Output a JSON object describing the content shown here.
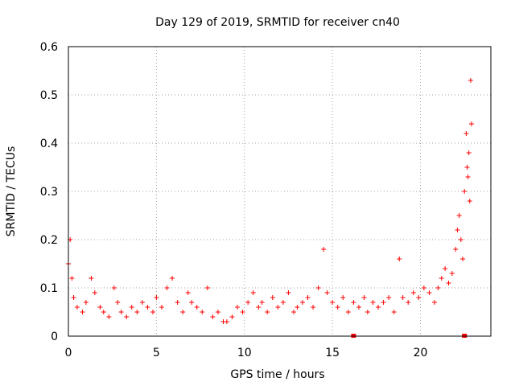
{
  "chart_data": {
    "type": "scatter",
    "title": "Day 129 of 2019, SRMTID for receiver cn40",
    "xlabel": "GPS time / hours",
    "ylabel": "SRMTID / TECUs",
    "xlim": [
      0,
      24
    ],
    "ylim": [
      0,
      0.6
    ],
    "xticks": [
      0,
      5,
      10,
      15,
      20
    ],
    "yticks": [
      0,
      0.1,
      0.2,
      0.3,
      0.4,
      0.5,
      0.6
    ],
    "xtick_labels": [
      "0",
      "5",
      "10",
      "15",
      "20"
    ],
    "ytick_labels": [
      "0",
      "0.1",
      "0.2",
      "0.3",
      "0.4",
      "0.5",
      "0.6"
    ],
    "grid": true,
    "marker": "+",
    "color": "#ff0000",
    "series": [
      {
        "name": "SRMTID",
        "x": [
          0.0,
          0.1,
          0.2,
          0.3,
          0.5,
          0.8,
          1.0,
          1.3,
          1.5,
          1.8,
          2.0,
          2.3,
          2.6,
          2.8,
          3.0,
          3.3,
          3.6,
          3.9,
          4.2,
          4.5,
          4.8,
          5.0,
          5.3,
          5.6,
          5.9,
          6.2,
          6.5,
          6.8,
          7.0,
          7.3,
          7.6,
          7.9,
          8.2,
          8.5,
          8.8,
          9.0,
          9.3,
          9.6,
          9.9,
          10.2,
          10.5,
          10.8,
          11.0,
          11.3,
          11.6,
          11.9,
          12.2,
          12.5,
          12.8,
          13.0,
          13.3,
          13.6,
          13.9,
          14.2,
          14.5,
          14.7,
          15.0,
          15.3,
          15.6,
          15.9,
          16.2,
          16.5,
          16.8,
          17.0,
          17.3,
          17.6,
          17.9,
          18.2,
          18.5,
          18.8,
          19.0,
          19.3,
          19.6,
          19.9,
          20.2,
          20.5,
          20.8,
          21.0,
          21.2,
          21.4,
          21.6,
          21.8,
          22.0,
          22.1,
          22.2,
          22.3,
          22.4,
          22.5,
          22.6,
          22.65,
          22.7,
          22.75,
          22.8,
          22.85,
          22.9
        ],
        "y": [
          0.15,
          0.2,
          0.12,
          0.08,
          0.06,
          0.05,
          0.07,
          0.12,
          0.09,
          0.06,
          0.05,
          0.04,
          0.1,
          0.07,
          0.05,
          0.04,
          0.06,
          0.05,
          0.07,
          0.06,
          0.05,
          0.08,
          0.06,
          0.1,
          0.12,
          0.07,
          0.05,
          0.09,
          0.07,
          0.06,
          0.05,
          0.1,
          0.04,
          0.05,
          0.03,
          0.03,
          0.04,
          0.06,
          0.05,
          0.07,
          0.09,
          0.06,
          0.07,
          0.05,
          0.08,
          0.06,
          0.07,
          0.09,
          0.05,
          0.06,
          0.07,
          0.08,
          0.06,
          0.1,
          0.18,
          0.09,
          0.07,
          0.06,
          0.08,
          0.05,
          0.07,
          0.06,
          0.08,
          0.05,
          0.07,
          0.06,
          0.07,
          0.08,
          0.05,
          0.16,
          0.08,
          0.07,
          0.09,
          0.08,
          0.1,
          0.09,
          0.07,
          0.1,
          0.12,
          0.14,
          0.11,
          0.13,
          0.18,
          0.22,
          0.25,
          0.2,
          0.16,
          0.3,
          0.42,
          0.35,
          0.33,
          0.38,
          0.28,
          0.53,
          0.44
        ]
      }
    ],
    "markers_at_zero": [
      16.2,
      22.5
    ]
  }
}
